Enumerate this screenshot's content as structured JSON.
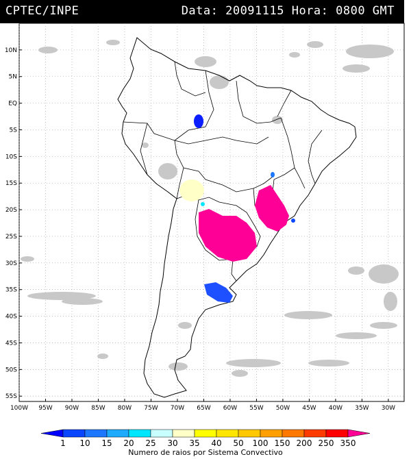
{
  "header": {
    "agency": "CPTEC/INPE",
    "datetime": "Data: 20091115 Hora: 0800 GMT"
  },
  "map": {
    "lat_labels": [
      "10N",
      "5N",
      "EQ",
      "5S",
      "10S",
      "15S",
      "20S",
      "25S",
      "30S",
      "35S",
      "40S",
      "45S",
      "50S",
      "55S"
    ],
    "lon_labels": [
      "100W",
      "95W",
      "90W",
      "85W",
      "80W",
      "75W",
      "70W",
      "65W",
      "60W",
      "55W",
      "50W",
      "45W",
      "40W",
      "35W",
      "30W"
    ],
    "lat_values": [
      10,
      5,
      0,
      -5,
      -10,
      -15,
      -20,
      -25,
      -30,
      -35,
      -40,
      -45,
      -50,
      -55
    ],
    "lon_values": [
      -100,
      -95,
      -90,
      -85,
      -80,
      -75,
      -70,
      -65,
      -60,
      -55,
      -50,
      -45,
      -40,
      -35,
      -30
    ],
    "lat_range": [
      -56,
      15
    ],
    "lon_range": [
      -100,
      -27
    ]
  },
  "legend": {
    "labels": [
      "1",
      "10",
      "15",
      "20",
      "25",
      "30",
      "35",
      "40",
      "50",
      "100",
      "150",
      "200",
      "250",
      "350"
    ],
    "colors": [
      "#0000ff",
      "#0a46ff",
      "#1e78ff",
      "#1eaaff",
      "#00e6ff",
      "#c8ffff",
      "#ffffc8",
      "#ffff00",
      "#ffe600",
      "#ffc800",
      "#ffa000",
      "#ff7800",
      "#ff3c00",
      "#ff0000",
      "#ff0096"
    ],
    "caption": "Numero de raios por Sistema Convectivo"
  }
}
